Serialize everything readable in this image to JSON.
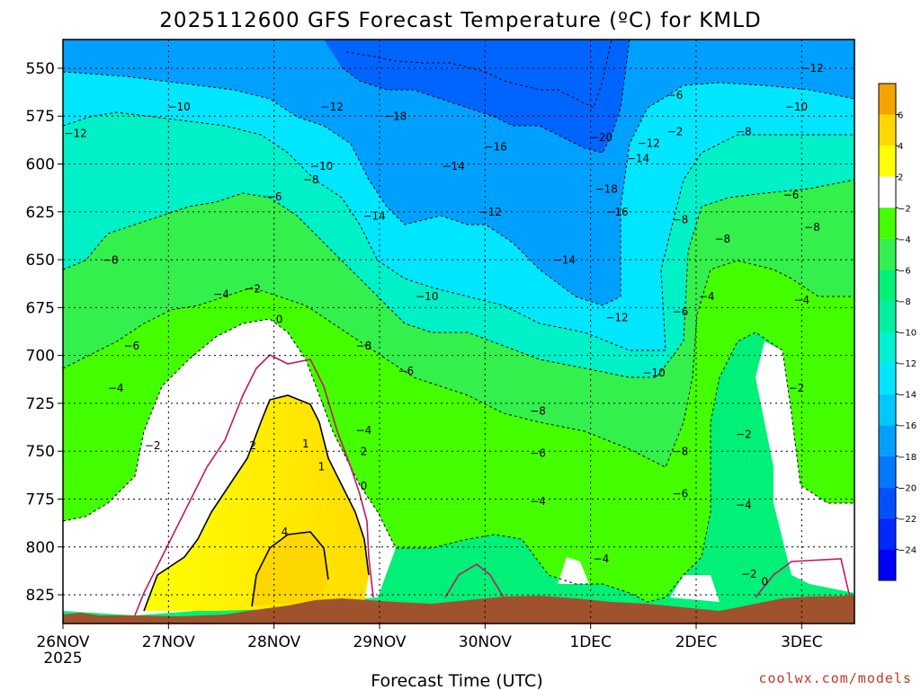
{
  "title": "2025112600 GFS Forecast Temperature (ºC) for KMLD",
  "xlabel": "Forecast Time (UTC)",
  "credit": "coolwx.com/models",
  "chart_data": {
    "type": "heatmap",
    "title": "2025112600 GFS Forecast Temperature (ºC) for KMLD",
    "xlabel": "Forecast Time (UTC)",
    "ylabel": "",
    "x_ticks": [
      "26NOV",
      "27NOV",
      "28NOV",
      "29NOV",
      "30NOV",
      "1DEC",
      "2DEC",
      "3DEC"
    ],
    "x_year": "2025",
    "y_ticks": [
      550,
      575,
      600,
      625,
      650,
      675,
      700,
      725,
      750,
      775,
      800,
      825
    ],
    "x_range_days": [
      0,
      7.5
    ],
    "y_range_hpa": [
      535,
      840
    ],
    "colorbar": {
      "levels": [
        6,
        4,
        2,
        -2,
        -4,
        -6,
        -8,
        -10,
        -12,
        -14,
        -16,
        -18,
        -20,
        -22,
        -24
      ],
      "colors": [
        "#f4a400",
        "#ffd700",
        "#ffff00",
        "#ffffff",
        "#44ff00",
        "#33f04c",
        "#00f078",
        "#00f0a0",
        "#00f0d2",
        "#00e6ff",
        "#00c8ff",
        "#00a0ff",
        "#0078ff",
        "#0050ff",
        "#0028ff",
        "#0000ff"
      ]
    },
    "contour_labels": [
      {
        "day": 0.12,
        "p": 586,
        "v": "-12"
      },
      {
        "day": 1.1,
        "p": 572,
        "v": "-10"
      },
      {
        "day": 2.55,
        "p": 572,
        "v": "-12"
      },
      {
        "day": 3.15,
        "p": 577,
        "v": "-18"
      },
      {
        "day": 4.1,
        "p": 593,
        "v": "-16"
      },
      {
        "day": 3.7,
        "p": 603,
        "v": "-14"
      },
      {
        "day": 2.45,
        "p": 603,
        "v": "-10"
      },
      {
        "day": 2.35,
        "p": 610,
        "v": "-8"
      },
      {
        "day": 5.1,
        "p": 588,
        "v": "-20"
      },
      {
        "day": 5.55,
        "p": 591,
        "v": "-12"
      },
      {
        "day": 5.45,
        "p": 599,
        "v": "-14"
      },
      {
        "day": 5.15,
        "p": 615,
        "v": "-18"
      },
      {
        "day": 5.25,
        "p": 627,
        "v": "-16"
      },
      {
        "day": 4.05,
        "p": 627,
        "v": "-12"
      },
      {
        "day": 2.95,
        "p": 629,
        "v": "-14"
      },
      {
        "day": 2.0,
        "p": 619,
        "v": "-6"
      },
      {
        "day": 0.45,
        "p": 652,
        "v": "-8"
      },
      {
        "day": 4.75,
        "p": 652,
        "v": "-14"
      },
      {
        "day": 3.45,
        "p": 671,
        "v": "-10"
      },
      {
        "day": 1.5,
        "p": 670,
        "v": "-4"
      },
      {
        "day": 1.8,
        "p": 667,
        "v": "-2"
      },
      {
        "day": 2.05,
        "p": 683,
        "v": "0"
      },
      {
        "day": 5.25,
        "p": 682,
        "v": "-12"
      },
      {
        "day": 5.85,
        "p": 679,
        "v": "-6"
      },
      {
        "day": 6.1,
        "p": 671,
        "v": "-4"
      },
      {
        "day": 6.25,
        "p": 641,
        "v": "-8"
      },
      {
        "day": 5.85,
        "p": 631,
        "v": "-8"
      },
      {
        "day": 6.45,
        "p": 585,
        "v": "-8"
      },
      {
        "day": 6.9,
        "p": 618,
        "v": "-6"
      },
      {
        "day": 7.1,
        "p": 635,
        "v": "-8"
      },
      {
        "day": 6.95,
        "p": 572,
        "v": "-10"
      },
      {
        "day": 7.1,
        "p": 552,
        "v": "-12"
      },
      {
        "day": 5.8,
        "p": 566,
        "v": "-6"
      },
      {
        "day": 5.8,
        "p": 585,
        "v": "-2"
      },
      {
        "day": 7.0,
        "p": 673,
        "v": "-4"
      },
      {
        "day": 0.65,
        "p": 697,
        "v": "-6"
      },
      {
        "day": 0.5,
        "p": 719,
        "v": "-4"
      },
      {
        "day": 2.85,
        "p": 697,
        "v": "-8"
      },
      {
        "day": 3.25,
        "p": 710,
        "v": "-6"
      },
      {
        "day": 5.6,
        "p": 711,
        "v": "-10"
      },
      {
        "day": 4.5,
        "p": 731,
        "v": "-8"
      },
      {
        "day": 2.85,
        "p": 741,
        "v": "-4"
      },
      {
        "day": 6.95,
        "p": 719,
        "v": "-2"
      },
      {
        "day": 6.45,
        "p": 743,
        "v": "-2"
      },
      {
        "day": 0.85,
        "p": 749,
        "v": "-2"
      },
      {
        "day": 1.8,
        "p": 749,
        "v": "2"
      },
      {
        "day": 2.3,
        "p": 748,
        "v": "1"
      },
      {
        "day": 2.45,
        "p": 760,
        "v": "1"
      },
      {
        "day": 2.85,
        "p": 752,
        "v": "2"
      },
      {
        "day": 2.85,
        "p": 770,
        "v": "0"
      },
      {
        "day": 4.5,
        "p": 753,
        "v": "-6"
      },
      {
        "day": 5.85,
        "p": 752,
        "v": "-8"
      },
      {
        "day": 4.5,
        "p": 778,
        "v": "-4"
      },
      {
        "day": 5.85,
        "p": 774,
        "v": "-6"
      },
      {
        "day": 6.45,
        "p": 780,
        "v": "-4"
      },
      {
        "day": 2.1,
        "p": 794,
        "v": "4"
      },
      {
        "day": 5.1,
        "p": 808,
        "v": "-4"
      },
      {
        "day": 6.5,
        "p": 816,
        "v": "-2"
      },
      {
        "day": 6.65,
        "p": 820,
        "v": "0"
      }
    ]
  }
}
